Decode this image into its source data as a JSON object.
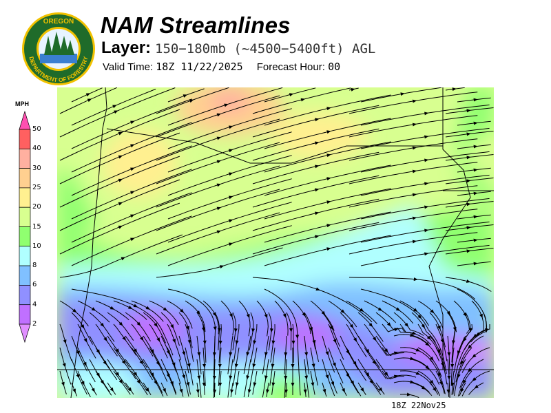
{
  "logo": {
    "top_text": "OREGON",
    "bottom_text": "DEPARTMENT OF FORESTRY",
    "ring_color": "#1f6b2a",
    "text_color": "#f2c200"
  },
  "header": {
    "title": "NAM Streamlines",
    "layer_label": "Layer:",
    "layer_value": "150−180mb (~4500−5400ft) AGL",
    "valid_label": "Valid Time:",
    "valid_value": "18Z 11/22/2025",
    "forecast_label": "Forecast Hour:",
    "forecast_value": "00"
  },
  "legend": {
    "unit": "MPH",
    "ticks": [
      "50",
      "40",
      "30",
      "25",
      "20",
      "15",
      "10",
      "8",
      "6",
      "4",
      "2"
    ],
    "colors": [
      "#ff6060",
      "#ffb0a0",
      "#ffd090",
      "#fff090",
      "#d8ff90",
      "#90ff70",
      "#b0ffff",
      "#80c0ff",
      "#9090ff",
      "#c070ff"
    ],
    "over_color": "#ff50b0",
    "under_color": "#e090ff"
  },
  "map": {
    "timestamp": "18Z 22Nov25",
    "streamline_color": "#000000"
  }
}
